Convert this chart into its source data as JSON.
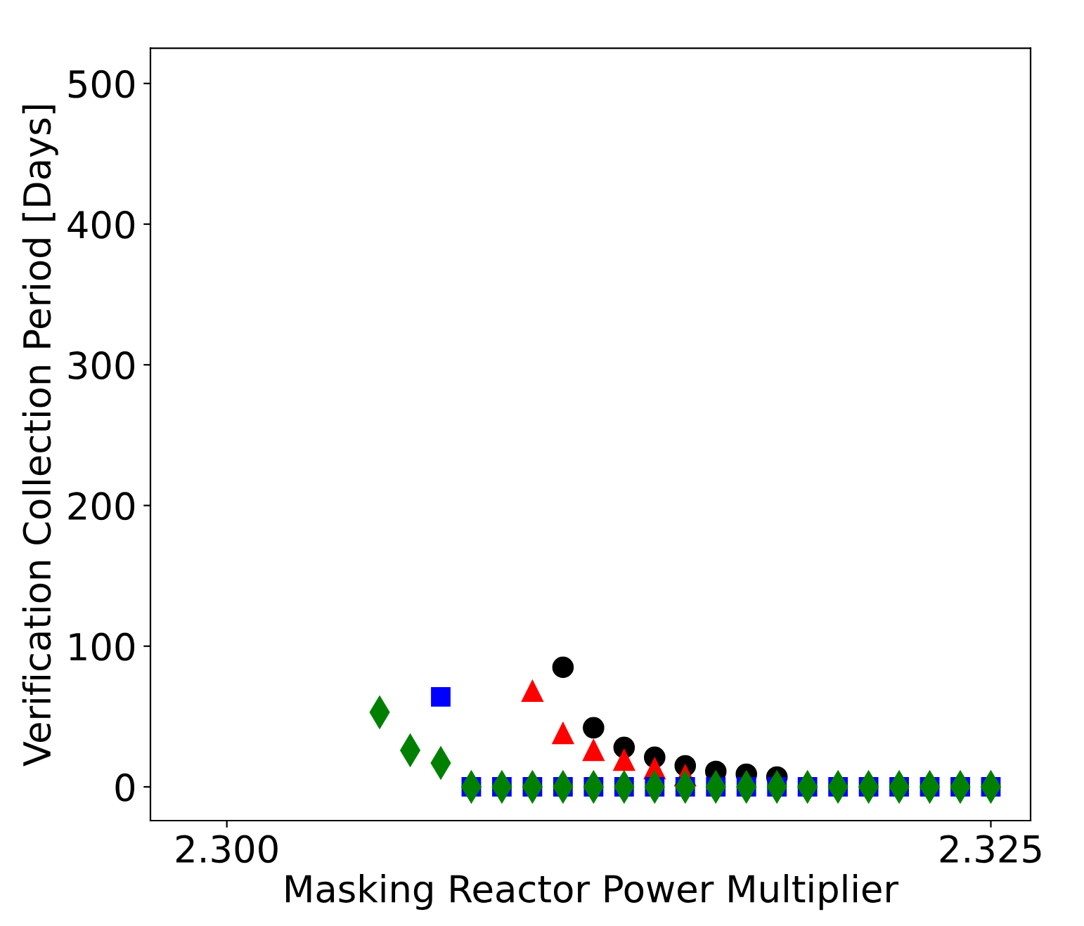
{
  "chart_data": {
    "type": "scatter",
    "xlabel": "Masking Reactor Power Multiplier",
    "ylabel": "Verification Collection Period [Days]",
    "xlim": [
      2.2975,
      2.3263
    ],
    "ylim": [
      -24,
      525
    ],
    "xticks": [
      {
        "value": 2.3,
        "label": "2.300"
      },
      {
        "value": 2.325,
        "label": "2.325"
      }
    ],
    "yticks": [
      0,
      100,
      200,
      300,
      400,
      500
    ],
    "grid": false,
    "legend": false,
    "series": [
      {
        "color": "#000000",
        "marker": "circle",
        "x": [
          2.311,
          2.312,
          2.313,
          2.314,
          2.315,
          2.316,
          2.317,
          2.318
        ],
        "values": [
          85,
          42,
          28,
          21,
          15,
          11,
          9,
          7
        ]
      },
      {
        "color": "#ff0000",
        "marker": "triangle",
        "x": [
          2.31,
          2.311,
          2.312,
          2.313,
          2.314,
          2.315
        ],
        "values": [
          68,
          38,
          26,
          19,
          13,
          8
        ]
      },
      {
        "color": "#0000ff",
        "marker": "square",
        "x": [
          2.307,
          2.308,
          2.309,
          2.31,
          2.311,
          2.312,
          2.313,
          2.314,
          2.315,
          2.316,
          2.317,
          2.318,
          2.319,
          2.32,
          2.321,
          2.322,
          2.323,
          2.324,
          2.325
        ],
        "values": [
          64,
          0,
          0,
          0,
          0,
          0,
          0,
          0,
          0,
          0,
          0,
          0,
          0,
          0,
          0,
          0,
          0,
          0,
          0
        ]
      },
      {
        "color": "#008000",
        "marker": "diamond",
        "x": [
          2.305,
          2.306,
          2.307,
          2.308,
          2.309,
          2.31,
          2.311,
          2.312,
          2.313,
          2.314,
          2.315,
          2.316,
          2.317,
          2.318,
          2.319,
          2.32,
          2.321,
          2.322,
          2.323,
          2.324,
          2.325
        ],
        "values": [
          53,
          26,
          17,
          0,
          0,
          0,
          0,
          0,
          0,
          0,
          0,
          0,
          0,
          0,
          0,
          0,
          0,
          0,
          0,
          0,
          0
        ]
      }
    ]
  }
}
